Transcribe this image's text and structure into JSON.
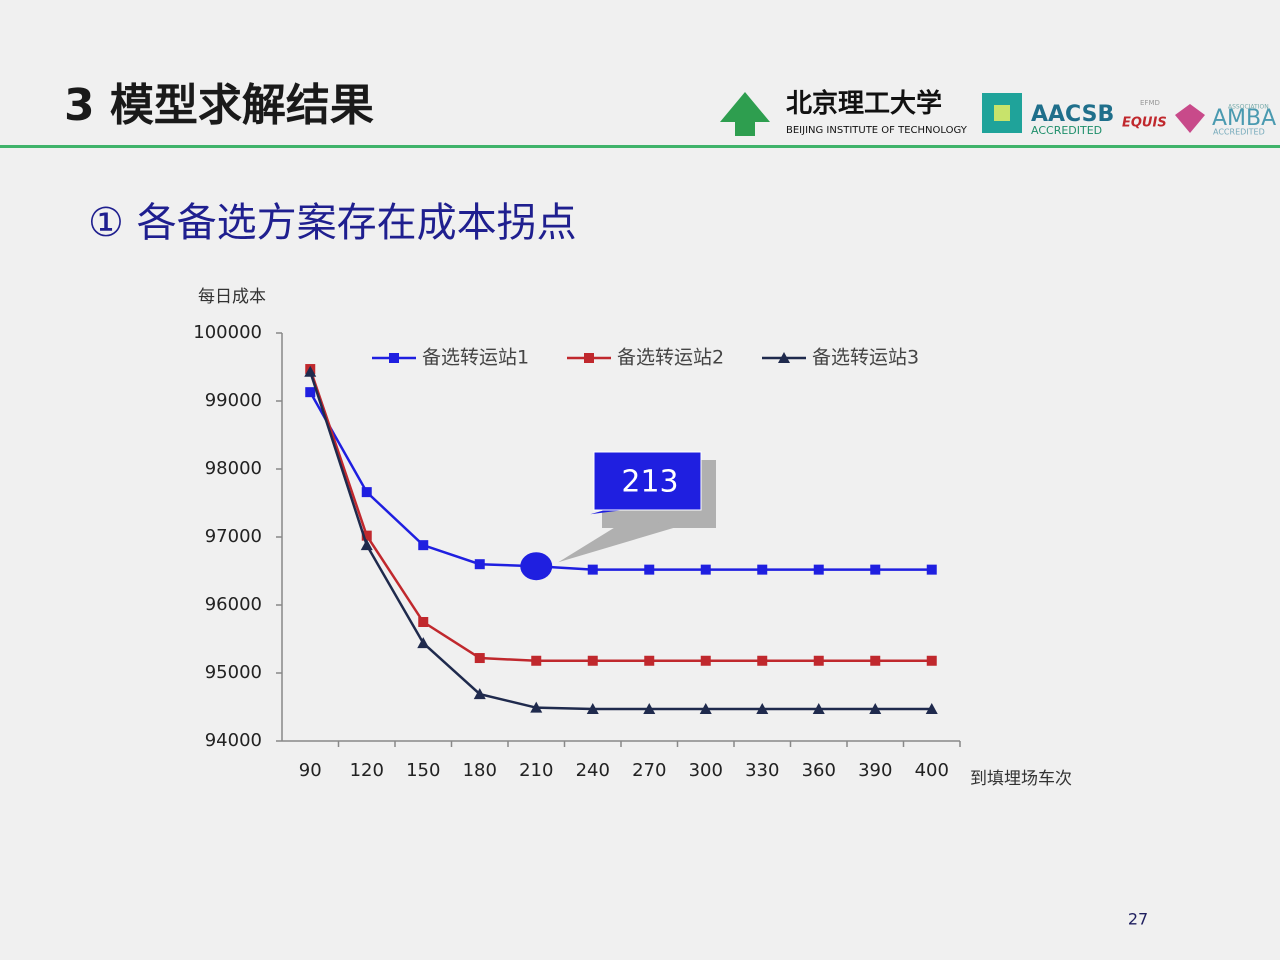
{
  "header": {
    "title": "3 模型求解结果",
    "logos": {
      "university": "北京理工大学",
      "university_en": "BEIJING INSTITUTE OF TECHNOLOGY",
      "aacsb": "AACSB",
      "aacsb_sub": "ACCREDITED",
      "efmd": "EFMD",
      "equis": "EQUIS",
      "amba": "AMBA",
      "amba_top": "ASSOCIATION",
      "amba_sub": "ACCREDITED"
    }
  },
  "subtitle": "① 各备选方案存在成本拐点",
  "page_number": "27",
  "chart_data": {
    "type": "line",
    "y_label": "每日成本",
    "x_label": "到填埋场车次",
    "categories": [
      "90",
      "120",
      "150",
      "180",
      "210",
      "240",
      "270",
      "300",
      "330",
      "360",
      "390",
      "400"
    ],
    "series": [
      {
        "name": "备选转运站1",
        "color": "#1f1fe0",
        "marker": "square",
        "values": [
          99130,
          97660,
          96880,
          96600,
          96570,
          96520,
          96520,
          96520,
          96520,
          96520,
          96520,
          96520
        ]
      },
      {
        "name": "备选转运站2",
        "color": "#c0282d",
        "marker": "square",
        "values": [
          99470,
          97020,
          95750,
          95220,
          95180,
          95180,
          95180,
          95180,
          95180,
          95180,
          95180,
          95180
        ]
      },
      {
        "name": "备选转运站3",
        "color": "#1f2a4d",
        "marker": "triangle",
        "values": [
          99430,
          96880,
          95440,
          94690,
          94490,
          94470,
          94470,
          94470,
          94470,
          94470,
          94470,
          94470
        ]
      }
    ],
    "ylim": [
      94000,
      100000
    ],
    "yticks": [
      94000,
      95000,
      96000,
      97000,
      98000,
      99000,
      100000
    ],
    "grid": false,
    "annotation": "213"
  }
}
